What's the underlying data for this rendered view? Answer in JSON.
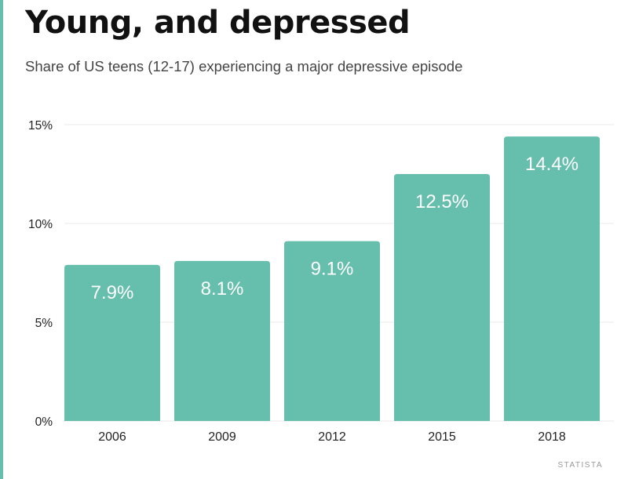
{
  "header": {
    "title": "Young, and depressed",
    "subtitle": "Share of US teens (12-17) experiencing a major depressive episode"
  },
  "footer": {
    "source": "STATISTA"
  },
  "colors": {
    "bar": "#66bead",
    "accent": "#66bead",
    "grid": "#e8e8e8",
    "text": "#222222",
    "label": "#ffffff"
  },
  "chart_data": {
    "type": "bar",
    "title": "Young, and depressed",
    "subtitle": "Share of US teens (12-17) experiencing a major depressive episode",
    "categories": [
      "2006",
      "2009",
      "2012",
      "2015",
      "2018"
    ],
    "values": [
      7.9,
      8.1,
      9.1,
      12.5,
      14.4
    ],
    "data_labels": [
      "7.9%",
      "8.1%",
      "9.1%",
      "12.5%",
      "14.4%"
    ],
    "ylim": [
      0,
      15
    ],
    "yticks": [
      0,
      5,
      10,
      15
    ],
    "ytick_labels": [
      "0%",
      "5%",
      "10%",
      "15%"
    ],
    "xlabel": "",
    "ylabel": "",
    "grid": true,
    "legend": "none"
  }
}
